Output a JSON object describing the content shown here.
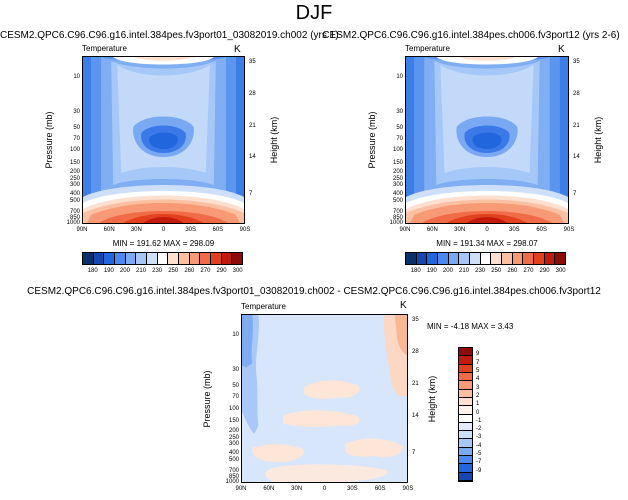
{
  "figure": {
    "season": "DJF",
    "field_label": "Temperature",
    "units": "K"
  },
  "chart_data": [
    {
      "type": "contour",
      "title": "CESM2.QPC6.C96.C96.g16.intel.384pes.fv3port01_03082019.ch002 (yrs 1)",
      "left_label": "Temperature",
      "right_label": "K",
      "xlabel": "",
      "ylabel": "Pressure (mb)",
      "y2label": "Height (km)",
      "x_ticks": [
        "90N",
        "60N",
        "30N",
        "0",
        "30S",
        "60S",
        "90S"
      ],
      "y_ticks": [
        "10",
        "30",
        "50",
        "70",
        "100",
        "150",
        "200",
        "250",
        "300",
        "400",
        "500",
        "700",
        "850",
        "1000"
      ],
      "y2_ticks": [
        "35",
        "28",
        "21",
        "14",
        "7"
      ],
      "stats": "MIN = 191.62   MAX = 298.09",
      "min": 191.62,
      "max": 298.09
    },
    {
      "type": "contour",
      "title": "CESM2.QPC6.C96.C96.g16.intel.384pes.ch006.fv3port12 (yrs 2-6)",
      "left_label": "Temperature",
      "right_label": "K",
      "xlabel": "",
      "ylabel": "Pressure (mb)",
      "y2label": "Height (km)",
      "x_ticks": [
        "90N",
        "60N",
        "30N",
        "0",
        "30S",
        "60S",
        "90S"
      ],
      "y_ticks": [
        "10",
        "30",
        "50",
        "70",
        "100",
        "150",
        "200",
        "250",
        "300",
        "400",
        "500",
        "700",
        "850",
        "1000"
      ],
      "y2_ticks": [
        "35",
        "28",
        "21",
        "14",
        "7"
      ],
      "stats": "MIN = 191.34   MAX = 298.07",
      "min": 191.34,
      "max": 298.07
    },
    {
      "type": "contour",
      "title": "CESM2.QPC6.C96.C96.g16.intel.384pes.fv3port01_03082019.ch002 - CESM2.QPC6.C96.C96.g16.intel.384pes.ch006.fv3port12",
      "left_label": "Temperature",
      "right_label": "K",
      "xlabel": "",
      "ylabel": "Pressure (mb)",
      "y2label": "Height (km)",
      "x_ticks": [
        "90N",
        "60N",
        "30N",
        "0",
        "30S",
        "60S",
        "90S"
      ],
      "y_ticks": [
        "10",
        "30",
        "50",
        "70",
        "100",
        "150",
        "200",
        "250",
        "300",
        "400",
        "500",
        "700",
        "850",
        "1000"
      ],
      "y2_ticks": [
        "35",
        "28",
        "21",
        "14",
        "7"
      ],
      "stats": "MIN = -4.18   MAX =  3.43",
      "min": -4.18,
      "max": 3.43
    }
  ],
  "colorbar_top": {
    "labels": [
      "180",
      "190",
      "200",
      "210",
      "230",
      "250",
      "260",
      "270",
      "290",
      "300"
    ],
    "colors": [
      "#08306b",
      "#1448b0",
      "#2166dd",
      "#4a8af0",
      "#7aa9f4",
      "#a6c6f8",
      "#cddff9",
      "#ffffff",
      "#fde0cf",
      "#fbbfa2",
      "#f79a75",
      "#f06c48",
      "#e3401f",
      "#c21b0e",
      "#8e0c07"
    ]
  },
  "colorbar_diff": {
    "labels": [
      "9",
      "7",
      "5",
      "4",
      "3",
      "2",
      "1",
      "0",
      "-1",
      "-2",
      "-3",
      "-4",
      "-5",
      "-7",
      "-9"
    ],
    "colors": [
      "#8e0c07",
      "#c21b0e",
      "#e3401f",
      "#f06c48",
      "#f79a75",
      "#fbbfa2",
      "#fde0cf",
      "#fef3ec",
      "#ffffff",
      "#e2ecfb",
      "#cddff9",
      "#a6c6f8",
      "#7aa9f4",
      "#4a8af0",
      "#2166dd",
      "#1448b0"
    ]
  }
}
